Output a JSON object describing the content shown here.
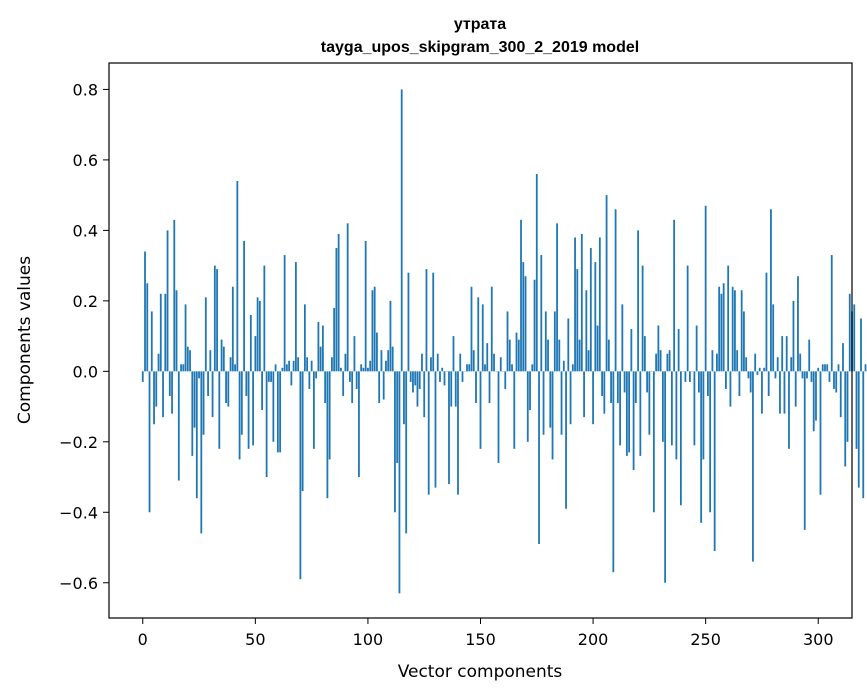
{
  "chart_data": {
    "type": "bar",
    "title": [
      "утрата",
      "tayga_upos_skipgram_300_2_2019 model"
    ],
    "xlabel": "Vector components",
    "ylabel": "Components values",
    "xlim": [
      -15,
      315
    ],
    "ylim": [
      -0.7,
      0.875
    ],
    "xticks": [
      0,
      50,
      100,
      150,
      200,
      250,
      300
    ],
    "yticks": [
      -0.6,
      -0.4,
      -0.2,
      0.0,
      0.2,
      0.4,
      0.6,
      0.8
    ],
    "ytick_labels": [
      "−0.6",
      "−0.4",
      "−0.2",
      "0.0",
      "0.2",
      "0.4",
      "0.6",
      "0.8"
    ],
    "bar_color": "#1f77b4",
    "values": [
      -0.03,
      0.34,
      0.25,
      -0.4,
      0.17,
      -0.15,
      -0.1,
      0.05,
      0.22,
      -0.13,
      0.22,
      0.4,
      -0.07,
      -0.12,
      0.43,
      0.23,
      -0.31,
      0.02,
      0.02,
      0.19,
      0.07,
      0.06,
      -0.24,
      -0.16,
      -0.36,
      -0.02,
      -0.46,
      -0.18,
      0.21,
      -0.07,
      0.06,
      -0.13,
      0.3,
      0.29,
      -0.22,
      0.09,
      0.07,
      -0.09,
      -0.1,
      0.04,
      0.24,
      0.02,
      0.54,
      -0.25,
      -0.18,
      0.37,
      -0.07,
      -0.22,
      0.16,
      -0.21,
      0.1,
      0.21,
      0.2,
      -0.11,
      0.3,
      -0.3,
      -0.03,
      -0.03,
      -0.2,
      0.02,
      -0.23,
      -0.23,
      0.01,
      0.33,
      0.02,
      0.03,
      -0.04,
      0.03,
      0.31,
      0.04,
      -0.59,
      -0.34,
      0.19,
      0.04,
      -0.05,
      0.03,
      -0.22,
      -0.02,
      0.14,
      0.07,
      0.13,
      -0.09,
      -0.36,
      -0.25,
      0.04,
      0.18,
      0.35,
      0.39,
      0.01,
      -0.07,
      0.05,
      0.42,
      -0.03,
      -0.09,
      0.1,
      -0.05,
      -0.3,
      0.02,
      0.01,
      0.37,
      0.01,
      0.03,
      0.23,
      0.24,
      0.11,
      -0.09,
      0.06,
      -0.08,
      0.03,
      0.06,
      0.2,
      0.07,
      -0.4,
      -0.26,
      -0.63,
      0.8,
      -0.15,
      -0.46,
      0.28,
      -0.03,
      -0.06,
      -0.04,
      -0.1,
      -0.05,
      0.05,
      -0.13,
      0.29,
      -0.35,
      0.04,
      0.28,
      -0.33,
      0.05,
      -0.03,
      0.01,
      -0.04,
      0.0,
      -0.32,
      -0.1,
      0.1,
      -0.1,
      -0.35,
      0.05,
      -0.03,
      0.0,
      0.02,
      0.02,
      0.24,
      0.06,
      -0.09,
      0.21,
      -0.22,
      0.19,
      0.02,
      0.08,
      -0.09,
      0.24,
      0.05,
      0.0,
      -0.26,
      0.04,
      0.0,
      -0.05,
      0.17,
      0.09,
      0.02,
      -0.22,
      0.11,
      0.09,
      0.43,
      0.31,
      0.27,
      -0.2,
      -0.11,
      0.02,
      0.26,
      0.56,
      -0.49,
      0.33,
      -0.18,
      0.17,
      0.09,
      -0.16,
      -0.25,
      0.17,
      0.42,
      0.09,
      -0.18,
      0.03,
      -0.39,
      0.15,
      -0.15,
      0.02,
      0.38,
      0.29,
      0.09,
      0.39,
      -0.13,
      0.23,
      0.06,
      0.35,
      -0.15,
      0.31,
      0.13,
      0.38,
      -0.07,
      -0.12,
      0.5,
      0.09,
      -0.09,
      -0.57,
      0.46,
      -0.09,
      -0.21,
      0.19,
      -0.06,
      -0.24,
      -0.23,
      0.12,
      -0.28,
      -0.09,
      0.4,
      -0.24,
      0.3,
      0.1,
      -0.06,
      -0.18,
      0.0,
      -0.4,
      0.05,
      0.13,
      0.06,
      -0.2,
      -0.6,
      0.05,
      0.06,
      -0.21,
      0.43,
      -0.25,
      0.12,
      -0.38,
      0.0,
      -0.03,
      0.3,
      -0.03,
      0.0,
      -0.21,
      0.13,
      -0.06,
      -0.43,
      -0.25,
      0.47,
      -0.07,
      -0.4,
      0.06,
      -0.51,
      0.05,
      0.24,
      0.22,
      0.25,
      -0.05,
      0.3,
      -0.1,
      0.24,
      0.23,
      0.06,
      -0.07,
      0.23,
      0.17,
      0.04,
      -0.02,
      -0.06,
      -0.54,
      0.05,
      -0.01,
      0.01,
      -0.12,
      0.01,
      0.28,
      -0.07,
      0.46,
      0.19,
      -0.02,
      0.04,
      -0.12,
      0.1,
      -0.12,
      0.1,
      -0.22,
      0.04,
      0.2,
      -0.1,
      0.27,
      0.05,
      -0.02,
      -0.45,
      -0.02,
      0.09,
      -0.03,
      -0.17,
      -0.14,
      0.01,
      -0.35,
      0.02,
      0.02,
      0.02,
      -0.03,
      0.33,
      -0.05,
      -0.06,
      0.02,
      -0.13,
      0.08,
      -0.27,
      -0.2,
      0.22,
      0.17,
      0.19,
      -0.22,
      -0.33,
      0.15,
      -0.36,
      0.02
    ]
  }
}
